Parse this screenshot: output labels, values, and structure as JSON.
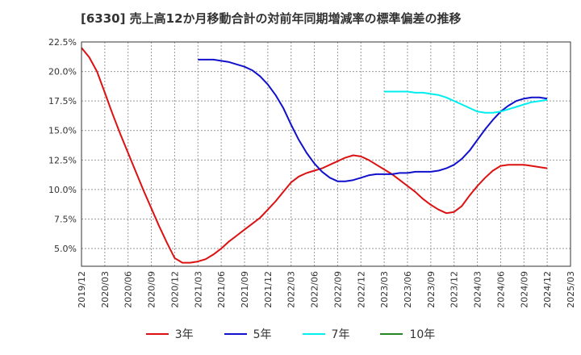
{
  "title": "[6330]  売上高12か月移動合計の対前年同期増減率の標準偏差の推移",
  "chart_data": {
    "type": "line",
    "ylim": [
      3.5,
      22.5
    ],
    "y_ticks": [
      5.0,
      7.5,
      10.0,
      12.5,
      15.0,
      17.5,
      20.0,
      22.5
    ],
    "y_tick_labels": [
      "5.0%",
      "7.5%",
      "10.0%",
      "12.5%",
      "15.0%",
      "17.5%",
      "20.0%",
      "22.5%"
    ],
    "x_range": [
      "2019-12",
      "2025-03"
    ],
    "x_tick_labels": [
      "2019/12",
      "2020/03",
      "2020/06",
      "2020/09",
      "2020/12",
      "2021/03",
      "2021/06",
      "2021/09",
      "2021/12",
      "2022/03",
      "2022/06",
      "2022/09",
      "2022/12",
      "2023/03",
      "2023/06",
      "2023/09",
      "2023/12",
      "2024/03",
      "2024/06",
      "2024/09",
      "2024/12",
      "2025/03"
    ],
    "grid": true,
    "legend_position": "bottom",
    "series": [
      {
        "name": "3年",
        "color": "#dd1111",
        "x": [
          "2019-12",
          "2020-01",
          "2020-02",
          "2020-03",
          "2020-04",
          "2020-05",
          "2020-06",
          "2020-07",
          "2020-08",
          "2020-09",
          "2020-10",
          "2020-11",
          "2020-12",
          "2021-01",
          "2021-02",
          "2021-03",
          "2021-04",
          "2021-05",
          "2021-06",
          "2021-07",
          "2021-08",
          "2021-09",
          "2021-10",
          "2021-11",
          "2021-12",
          "2022-01",
          "2022-02",
          "2022-03",
          "2022-04",
          "2022-05",
          "2022-06",
          "2022-07",
          "2022-08",
          "2022-09",
          "2022-10",
          "2022-11",
          "2022-12",
          "2023-01",
          "2023-02",
          "2023-03",
          "2023-04",
          "2023-05",
          "2023-06",
          "2023-07",
          "2023-08",
          "2023-09",
          "2023-10",
          "2023-11",
          "2023-12",
          "2024-01",
          "2024-02",
          "2024-03",
          "2024-04",
          "2024-05",
          "2024-06",
          "2024-07",
          "2024-08",
          "2024-09",
          "2024-10",
          "2024-11",
          "2024-12"
        ],
        "values": [
          22.0,
          21.2,
          20.0,
          18.2,
          16.4,
          14.7,
          13.1,
          11.5,
          9.9,
          8.4,
          6.9,
          5.5,
          4.2,
          3.8,
          3.8,
          3.9,
          4.1,
          4.5,
          5.0,
          5.6,
          6.1,
          6.6,
          7.1,
          7.6,
          8.3,
          9.0,
          9.8,
          10.6,
          11.1,
          11.4,
          11.6,
          11.8,
          12.1,
          12.4,
          12.7,
          12.9,
          12.8,
          12.5,
          12.1,
          11.7,
          11.3,
          10.8,
          10.3,
          9.8,
          9.2,
          8.7,
          8.3,
          8.0,
          8.1,
          8.6,
          9.5,
          10.3,
          11.0,
          11.6,
          12.0,
          12.1,
          12.1,
          12.1,
          12.0,
          11.9,
          11.8
        ]
      },
      {
        "name": "5年",
        "color": "#1111cc",
        "x": [
          "2021-03",
          "2021-04",
          "2021-05",
          "2021-06",
          "2021-07",
          "2021-08",
          "2021-09",
          "2021-10",
          "2021-11",
          "2021-12",
          "2022-01",
          "2022-02",
          "2022-03",
          "2022-04",
          "2022-05",
          "2022-06",
          "2022-07",
          "2022-08",
          "2022-09",
          "2022-10",
          "2022-11",
          "2022-12",
          "2023-01",
          "2023-02",
          "2023-03",
          "2023-04",
          "2023-05",
          "2023-06",
          "2023-07",
          "2023-08",
          "2023-09",
          "2023-10",
          "2023-11",
          "2023-12",
          "2024-01",
          "2024-02",
          "2024-03",
          "2024-04",
          "2024-05",
          "2024-06",
          "2024-07",
          "2024-08",
          "2024-09",
          "2024-10",
          "2024-11",
          "2024-12"
        ],
        "values": [
          21.0,
          21.0,
          21.0,
          20.9,
          20.8,
          20.6,
          20.4,
          20.1,
          19.6,
          18.9,
          18.0,
          16.9,
          15.5,
          14.2,
          13.1,
          12.2,
          11.5,
          11.0,
          10.7,
          10.7,
          10.8,
          11.0,
          11.2,
          11.3,
          11.3,
          11.3,
          11.4,
          11.4,
          11.5,
          11.5,
          11.5,
          11.6,
          11.8,
          12.1,
          12.6,
          13.3,
          14.2,
          15.1,
          15.9,
          16.6,
          17.1,
          17.5,
          17.7,
          17.8,
          17.8,
          17.7
        ]
      },
      {
        "name": "7年",
        "color": "#00eeee",
        "x": [
          "2023-03",
          "2023-04",
          "2023-05",
          "2023-06",
          "2023-07",
          "2023-08",
          "2023-09",
          "2023-10",
          "2023-11",
          "2023-12",
          "2024-01",
          "2024-02",
          "2024-03",
          "2024-04",
          "2024-05",
          "2024-06",
          "2024-07",
          "2024-08",
          "2024-09",
          "2024-10",
          "2024-11",
          "2024-12"
        ],
        "values": [
          18.3,
          18.3,
          18.3,
          18.3,
          18.2,
          18.2,
          18.1,
          18.0,
          17.8,
          17.5,
          17.2,
          16.9,
          16.6,
          16.5,
          16.5,
          16.6,
          16.8,
          17.0,
          17.2,
          17.4,
          17.5,
          17.6
        ]
      },
      {
        "name": "10年",
        "color": "#228822",
        "x": [],
        "values": []
      }
    ]
  }
}
